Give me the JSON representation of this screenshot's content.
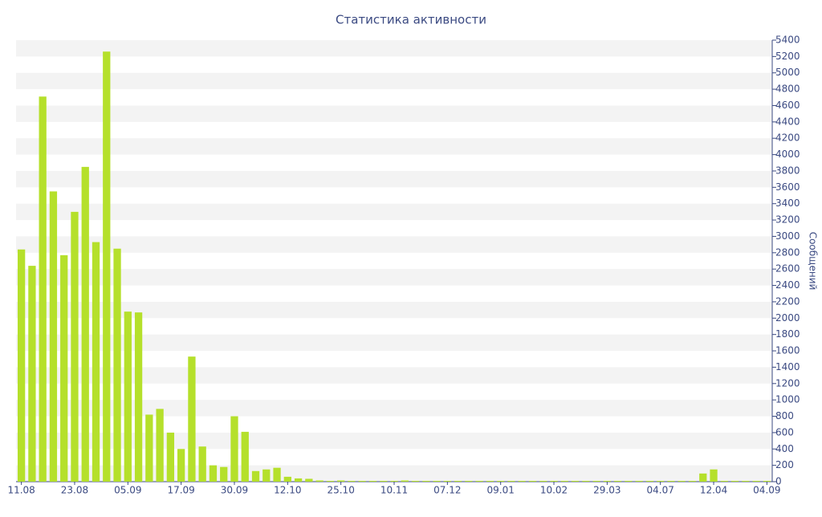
{
  "chart_data": {
    "type": "bar",
    "title": "Статистика активности",
    "y_label": "Сообщений",
    "categories": [
      "11.08",
      null,
      null,
      null,
      null,
      "23.08",
      null,
      null,
      null,
      null,
      "05.09",
      null,
      null,
      null,
      null,
      "17.09",
      null,
      null,
      null,
      null,
      "30.09",
      null,
      null,
      null,
      null,
      "12.10",
      null,
      null,
      null,
      null,
      "25.10",
      null,
      null,
      null,
      null,
      "10.11",
      null,
      null,
      null,
      null,
      "07.12",
      null,
      null,
      null,
      null,
      "09.01",
      null,
      null,
      null,
      null,
      "10.02",
      null,
      null,
      null,
      null,
      "29.03",
      null,
      null,
      null,
      null,
      "04.07",
      null,
      null,
      null,
      null,
      "12.04",
      null,
      null,
      null,
      null,
      "04.09"
    ],
    "values": [
      2840,
      2640,
      4710,
      3550,
      2770,
      3300,
      3850,
      2930,
      5260,
      2850,
      2080,
      2070,
      820,
      890,
      600,
      400,
      1530,
      430,
      200,
      180,
      800,
      610,
      130,
      150,
      170,
      60,
      40,
      35,
      15,
      10,
      15,
      10,
      10,
      10,
      10,
      10,
      15,
      10,
      10,
      10,
      10,
      10,
      10,
      10,
      10,
      10,
      10,
      10,
      10,
      10,
      10,
      10,
      10,
      10,
      10,
      10,
      10,
      10,
      10,
      10,
      10,
      10,
      10,
      10,
      100,
      150,
      10,
      10,
      10,
      10,
      10
    ],
    "color": "#b5e02b",
    "ylim": [
      0,
      5400
    ],
    "yticks": [
      0,
      200,
      400,
      600,
      800,
      1000,
      1200,
      1400,
      1600,
      1800,
      2000,
      2200,
      2400,
      2600,
      2800,
      3000,
      3200,
      3400,
      3600,
      3800,
      4000,
      4200,
      4400,
      4600,
      4800,
      5000,
      5200,
      5400
    ],
    "grid": true
  }
}
